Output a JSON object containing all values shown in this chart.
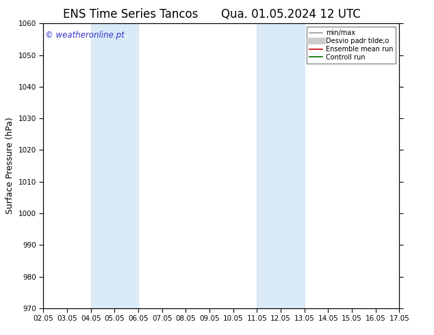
{
  "title_left": "ENS Time Series Tancos",
  "title_right": "Qua. 01.05.2024 12 UTC",
  "ylabel": "Surface Pressure (hPa)",
  "ylim": [
    970,
    1060
  ],
  "yticks": [
    970,
    980,
    990,
    1000,
    1010,
    1020,
    1030,
    1040,
    1050,
    1060
  ],
  "xlim_start": 0,
  "xlim_end": 15,
  "xtick_labels": [
    "02.05",
    "03.05",
    "04.05",
    "05.05",
    "06.05",
    "07.05",
    "08.05",
    "09.05",
    "10.05",
    "11.05",
    "12.05",
    "13.05",
    "14.05",
    "15.05",
    "16.05",
    "17.05"
  ],
  "xtick_positions": [
    0,
    1,
    2,
    3,
    4,
    5,
    6,
    7,
    8,
    9,
    10,
    11,
    12,
    13,
    14,
    15
  ],
  "blue_bands": [
    {
      "xmin": 2,
      "xmax": 4
    },
    {
      "xmin": 9,
      "xmax": 11
    }
  ],
  "band_color": "#daeaf7",
  "watermark": "© weatheronline.pt",
  "watermark_color": "#3333cc",
  "legend_entries": [
    {
      "label": "min/max",
      "color": "#999999",
      "lw": 1.2
    },
    {
      "label": "Desvio padr tilde;o",
      "color": "#cccccc",
      "lw": 7
    },
    {
      "label": "Ensemble mean run",
      "color": "#cc0000",
      "lw": 1.2
    },
    {
      "label": "Controll run",
      "color": "#006600",
      "lw": 1.2
    }
  ],
  "bg_color": "#ffffff",
  "title_fontsize": 12,
  "tick_fontsize": 7.5,
  "ylabel_fontsize": 9,
  "watermark_fontsize": 8.5
}
